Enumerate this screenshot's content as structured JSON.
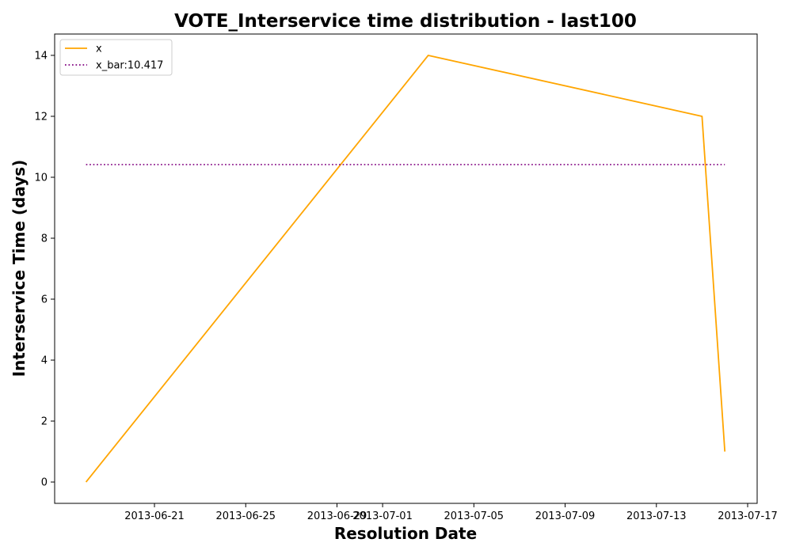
{
  "chart_data": {
    "type": "line",
    "title": "VOTE_Interservice time distribution - last100",
    "xlabel": "Resolution Date",
    "ylabel": "Interservice Time (days)",
    "x_type": "date",
    "xlim": [
      "2013-06-16T15:00",
      "2013-07-17T10:00"
    ],
    "ylim": [
      -0.7,
      14.7
    ],
    "x_ticks": [
      "2013-06-21",
      "2013-06-25",
      "2013-06-29",
      "2013-07-01",
      "2013-07-05",
      "2013-07-09",
      "2013-07-13",
      "2013-07-17"
    ],
    "y_ticks": [
      0,
      2,
      4,
      6,
      8,
      10,
      12,
      14
    ],
    "series": [
      {
        "name": "x",
        "color": "#ffa500",
        "style": "solid",
        "x": [
          "2013-06-18",
          "2013-07-03",
          "2013-07-15",
          "2013-07-16"
        ],
        "y": [
          0,
          14,
          12,
          1
        ]
      },
      {
        "name": "x_bar:10.417",
        "color": "#800080",
        "style": "dotted",
        "x": [
          "2013-06-18",
          "2013-07-16"
        ],
        "y": [
          10.417,
          10.417
        ]
      }
    ],
    "legend": "top-left",
    "grid": false
  }
}
